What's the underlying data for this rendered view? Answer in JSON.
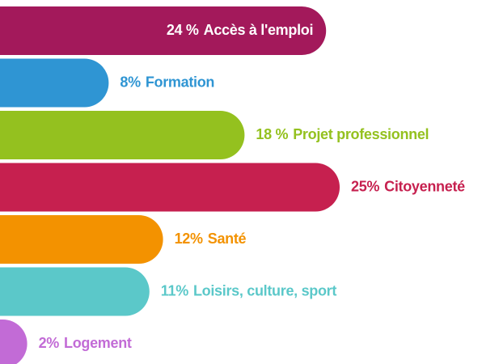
{
  "chart_data": {
    "type": "bar",
    "categories": [
      "Accès à l'emploi",
      "Formation",
      "Projet professionnel",
      "Citoyenneté",
      "Santé",
      "Loisirs, culture, sport",
      "Logement"
    ],
    "values": [
      24,
      8,
      18,
      25,
      12,
      11,
      2
    ],
    "value_labels": [
      "24 %",
      "8%",
      "18 %",
      "25%",
      "12%",
      "11%",
      "2%"
    ],
    "colors": [
      "#a3195b",
      "#2f95d3",
      "#94c11f",
      "#c6204f",
      "#f39200",
      "#5bc8c9",
      "#c26bd6"
    ]
  }
}
